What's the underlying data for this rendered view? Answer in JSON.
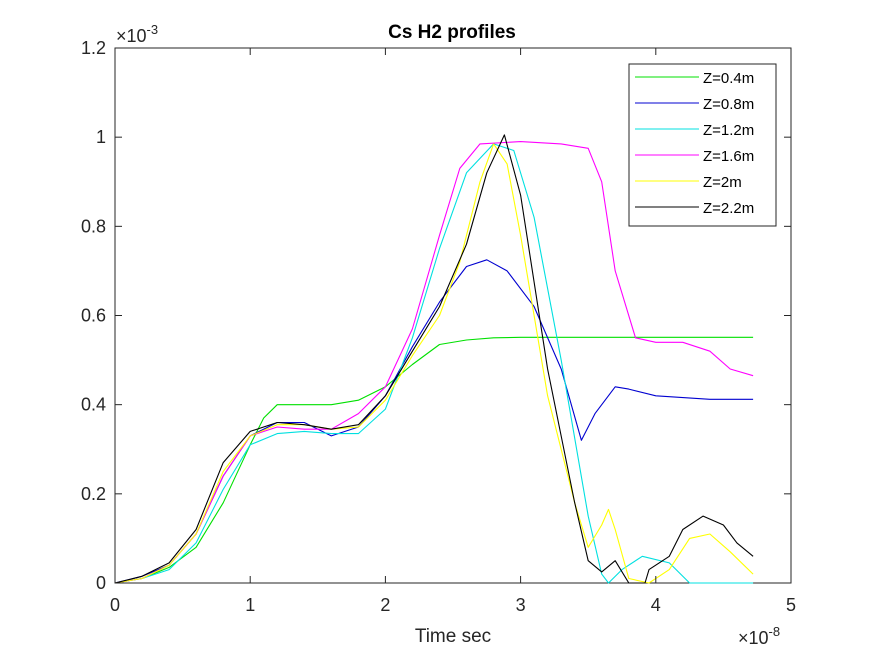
{
  "chart_data": {
    "type": "line",
    "title": "Cs H2 profiles",
    "xlabel": "Time sec",
    "ylabel": "",
    "x_exponent_label": "×10",
    "x_exponent_power": "-8",
    "y_exponent_label": "×10",
    "y_exponent_power": "-3",
    "x_units_scale": 1e-08,
    "y_units_scale": 0.001,
    "xlim": [
      0,
      5
    ],
    "ylim": [
      0,
      1.2
    ],
    "xticks": [
      0,
      1,
      2,
      3,
      4,
      5
    ],
    "yticks": [
      0,
      0.2,
      0.4,
      0.6,
      0.8,
      1,
      1.2
    ],
    "xtick_labels": [
      "0",
      "1",
      "2",
      "3",
      "4",
      "5"
    ],
    "ytick_labels": [
      "0",
      "0.2",
      "0.4",
      "0.6",
      "0.8",
      "1",
      "1.2"
    ],
    "grid": false,
    "legend_position": "top-right",
    "series": [
      {
        "name": "Z=0.4m",
        "color": "#00e000",
        "x": [
          0,
          0.2,
          0.4,
          0.6,
          0.8,
          1.0,
          1.1,
          1.2,
          1.4,
          1.6,
          1.8,
          2.0,
          2.2,
          2.4,
          2.6,
          2.8,
          3.0,
          3.5,
          4.0,
          4.5,
          4.72
        ],
        "y": [
          0,
          0.01,
          0.035,
          0.08,
          0.18,
          0.31,
          0.37,
          0.4,
          0.4,
          0.4,
          0.41,
          0.44,
          0.49,
          0.535,
          0.545,
          0.55,
          0.551,
          0.551,
          0.551,
          0.551,
          0.551
        ]
      },
      {
        "name": "Z=0.8m",
        "color": "#0000d0",
        "x": [
          0,
          0.2,
          0.4,
          0.6,
          0.8,
          1.0,
          1.2,
          1.4,
          1.6,
          1.8,
          2.0,
          2.2,
          2.4,
          2.6,
          2.75,
          2.9,
          3.1,
          3.3,
          3.45,
          3.55,
          3.7,
          3.8,
          4.0,
          4.4,
          4.72
        ],
        "y": [
          0,
          0.015,
          0.04,
          0.11,
          0.24,
          0.33,
          0.36,
          0.36,
          0.33,
          0.35,
          0.42,
          0.53,
          0.63,
          0.71,
          0.725,
          0.7,
          0.62,
          0.48,
          0.32,
          0.38,
          0.44,
          0.435,
          0.42,
          0.412,
          0.412
        ]
      },
      {
        "name": "Z=1.2m",
        "color": "#00e0e0",
        "x": [
          0,
          0.2,
          0.4,
          0.6,
          0.8,
          1.0,
          1.2,
          1.4,
          1.6,
          1.8,
          2.0,
          2.2,
          2.4,
          2.6,
          2.8,
          2.95,
          3.1,
          3.3,
          3.5,
          3.6,
          3.65,
          3.75,
          3.9,
          4.1,
          4.25,
          4.4,
          4.72
        ],
        "y": [
          0,
          0.01,
          0.03,
          0.09,
          0.21,
          0.31,
          0.335,
          0.34,
          0.335,
          0.335,
          0.39,
          0.55,
          0.75,
          0.92,
          0.985,
          0.97,
          0.82,
          0.5,
          0.15,
          0.02,
          0.0,
          0.03,
          0.06,
          0.045,
          0.0,
          0.0,
          0.0
        ]
      },
      {
        "name": "Z=1.6m",
        "color": "#ff00ff",
        "x": [
          0,
          0.2,
          0.4,
          0.6,
          0.8,
          1.0,
          1.2,
          1.4,
          1.6,
          1.8,
          2.0,
          2.2,
          2.4,
          2.55,
          2.7,
          3.0,
          3.3,
          3.5,
          3.6,
          3.7,
          3.85,
          4.0,
          4.2,
          4.4,
          4.55,
          4.72
        ],
        "y": [
          0,
          0.01,
          0.04,
          0.11,
          0.24,
          0.33,
          0.35,
          0.345,
          0.345,
          0.38,
          0.44,
          0.57,
          0.78,
          0.93,
          0.985,
          0.99,
          0.985,
          0.975,
          0.9,
          0.7,
          0.55,
          0.54,
          0.54,
          0.52,
          0.48,
          0.465
        ]
      },
      {
        "name": "Z=2m",
        "color": "#ffff00",
        "x": [
          0,
          0.2,
          0.4,
          0.6,
          0.8,
          1.0,
          1.2,
          1.4,
          1.6,
          1.8,
          2.0,
          2.2,
          2.4,
          2.55,
          2.7,
          2.8,
          2.9,
          3.0,
          3.2,
          3.4,
          3.5,
          3.6,
          3.65,
          3.7,
          3.8,
          3.95,
          4.1,
          4.25,
          4.4,
          4.55,
          4.72
        ],
        "y": [
          0,
          0.01,
          0.04,
          0.11,
          0.25,
          0.33,
          0.355,
          0.355,
          0.345,
          0.35,
          0.41,
          0.51,
          0.6,
          0.72,
          0.9,
          0.985,
          0.94,
          0.78,
          0.42,
          0.18,
          0.08,
          0.13,
          0.165,
          0.12,
          0.01,
          0.0,
          0.03,
          0.1,
          0.11,
          0.07,
          0.02
        ]
      },
      {
        "name": "Z=2.2m",
        "color": "#000000",
        "x": [
          0,
          0.2,
          0.4,
          0.6,
          0.8,
          1.0,
          1.2,
          1.4,
          1.6,
          1.8,
          2.0,
          2.2,
          2.4,
          2.6,
          2.75,
          2.88,
          3.0,
          3.2,
          3.4,
          3.5,
          3.6,
          3.7,
          3.8,
          3.92,
          3.95,
          4.1,
          4.2,
          4.35,
          4.5,
          4.6,
          4.72
        ],
        "y": [
          0,
          0.015,
          0.045,
          0.12,
          0.27,
          0.34,
          0.36,
          0.355,
          0.345,
          0.355,
          0.42,
          0.52,
          0.62,
          0.76,
          0.92,
          1.005,
          0.87,
          0.48,
          0.18,
          0.05,
          0.025,
          0.05,
          0.0,
          0.0,
          0.03,
          0.06,
          0.12,
          0.15,
          0.13,
          0.09,
          0.06
        ]
      }
    ]
  }
}
